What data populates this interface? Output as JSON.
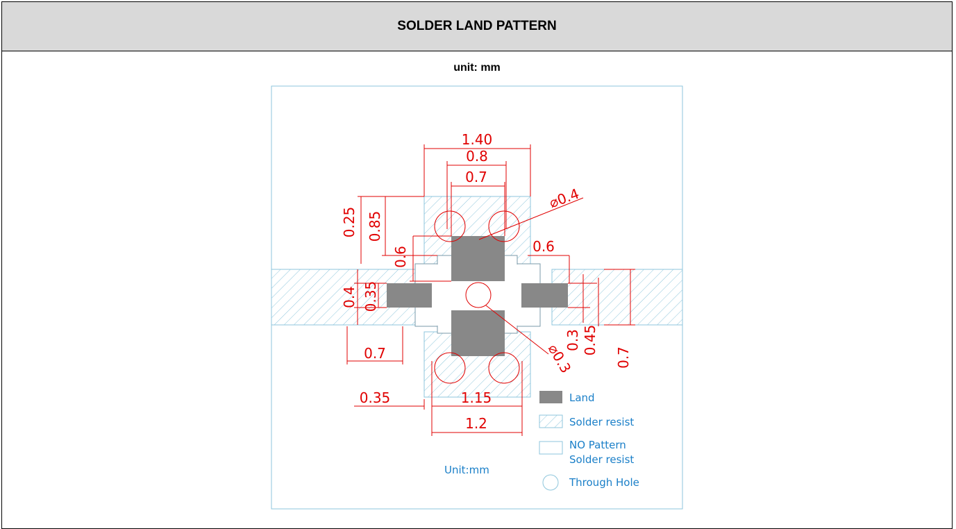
{
  "header": {
    "title": "SOLDER LAND PATTERN"
  },
  "unit_note": "unit: mm",
  "drawing": {
    "dimensions": [
      "1.40",
      "0.8",
      "0.7",
      "⌀0.4",
      "0.25",
      "0.85",
      "0.6",
      "0.6",
      "0.4",
      "0.35",
      "0.7",
      "0.35",
      "1.15",
      "1.2",
      "⌀0.3",
      "0.3",
      "0.45",
      "0.7"
    ],
    "unit_label": "Unit:mm",
    "legend": [
      "Land",
      "Solder resist",
      "NO Pattern",
      "Solder resist",
      "Through Hole"
    ]
  }
}
